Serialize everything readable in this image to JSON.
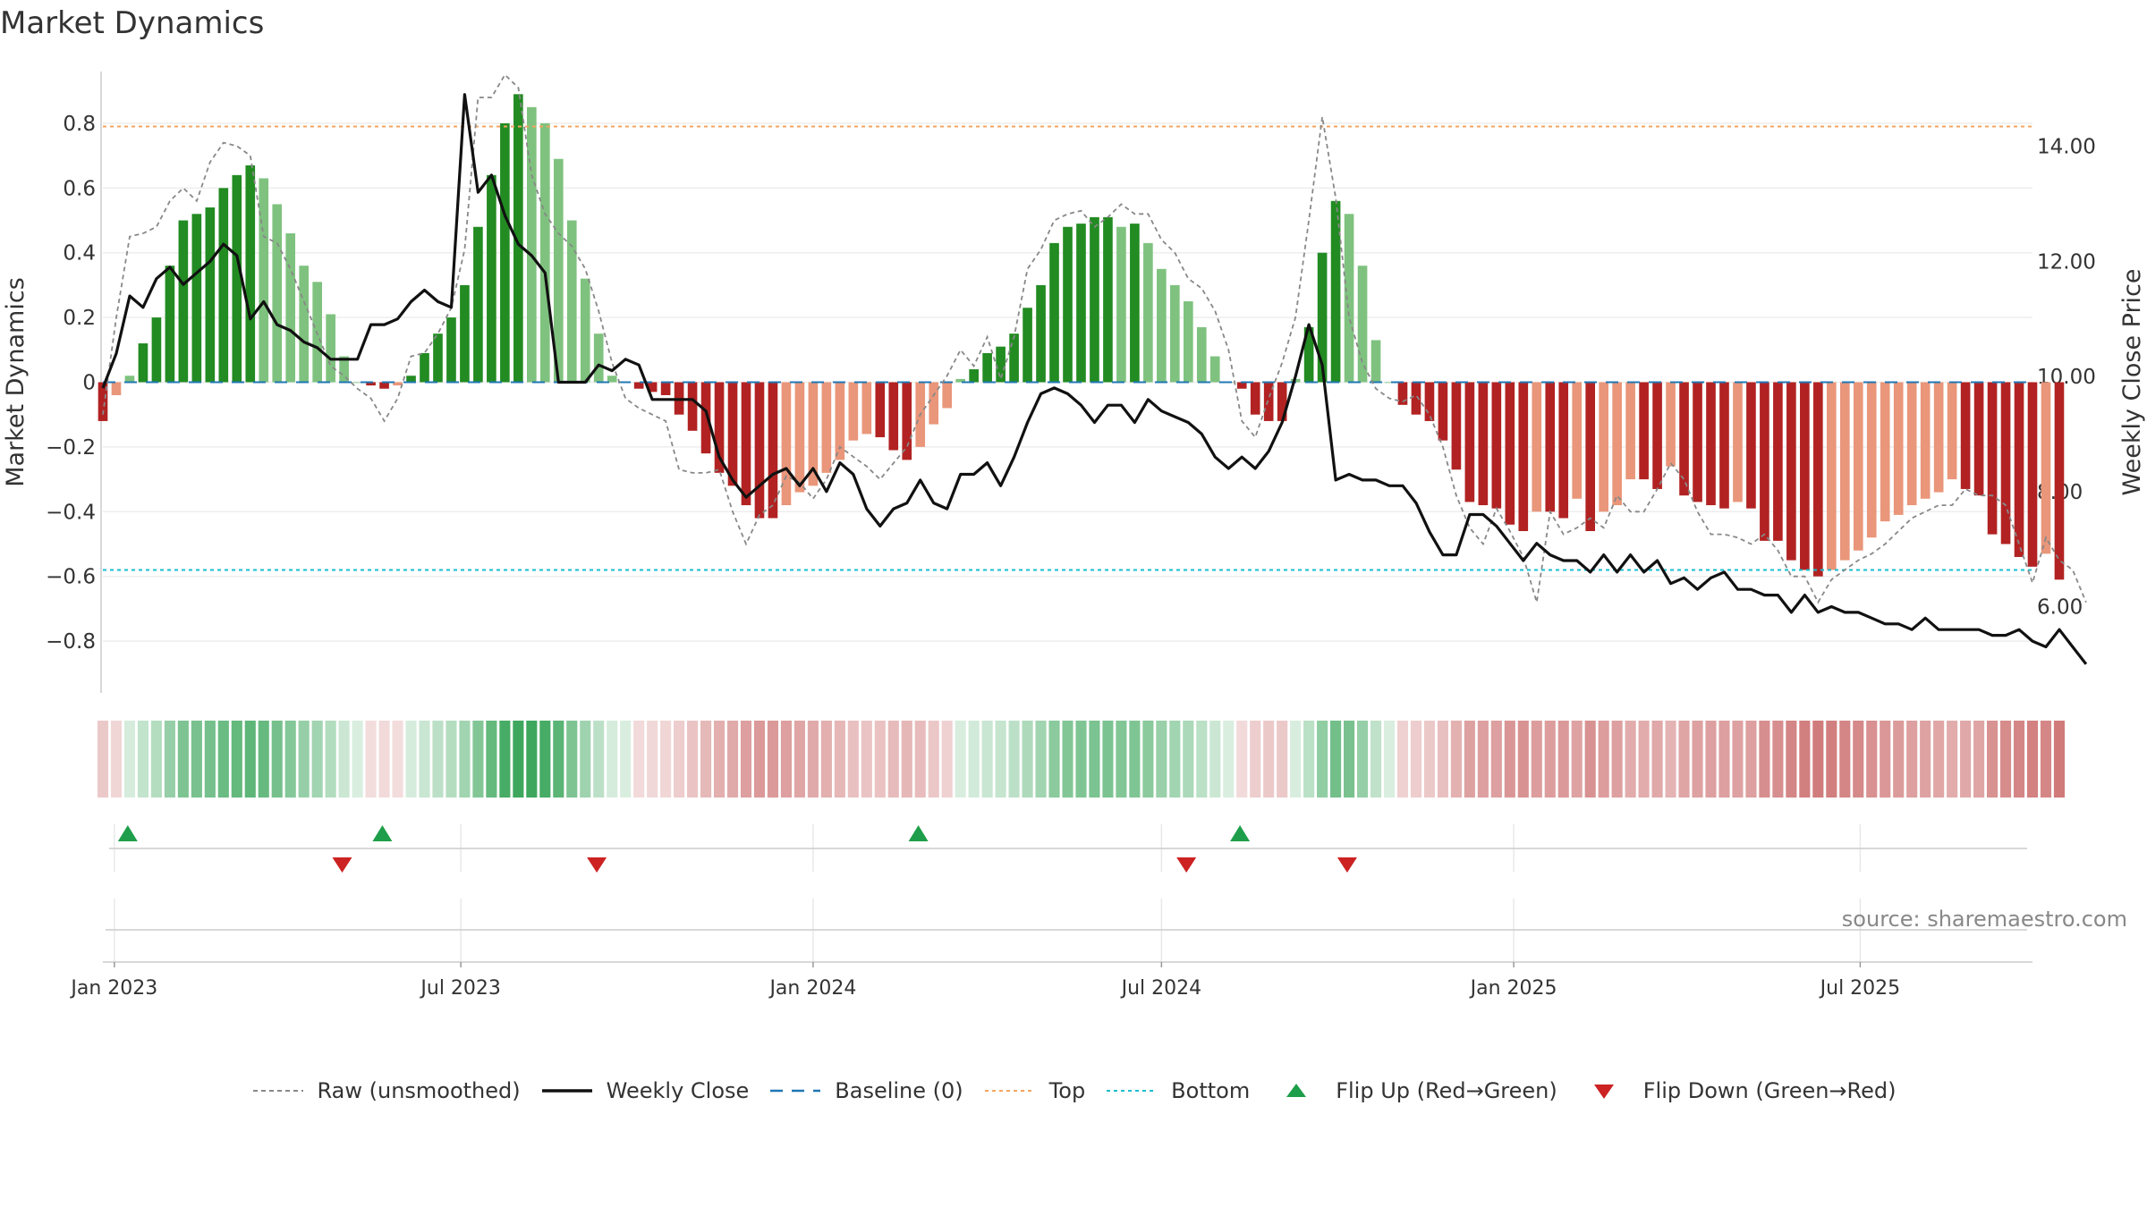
{
  "title": "Market Dynamics",
  "source": "source: sharemaestro.com",
  "colors": {
    "strong_green": "#228b22",
    "light_green": "#7fc27f",
    "strong_red": "#b22222",
    "light_red": "#e9967a",
    "close_line": "#111111",
    "raw_line": "#888888",
    "baseline": "#1f77b4",
    "top": "#f4a460",
    "bottom": "#17becf",
    "flip_up": "#1e9e4a",
    "flip_down": "#cc2222"
  },
  "legend": [
    {
      "label": "Raw (unsmoothed)",
      "icon": "dotted-line-icon"
    },
    {
      "label": "Weekly Close",
      "icon": "solid-line-icon"
    },
    {
      "label": "Baseline (0)",
      "icon": "dashed-line-icon"
    },
    {
      "label": "Top",
      "icon": "dotted-line-icon"
    },
    {
      "label": "Bottom",
      "icon": "dotted-line-icon"
    },
    {
      "label": "Flip Up (Red→Green)",
      "icon": "triangle-up-icon"
    },
    {
      "label": "Flip Down (Green→Red)",
      "icon": "triangle-down-icon"
    }
  ],
  "chart_data": {
    "type": "bar",
    "ylabel": "Market Dynamics",
    "y2label": "Weekly Close Price",
    "ylim": [
      -0.96,
      0.96
    ],
    "y2lim": [
      4.5,
      15.3
    ],
    "yticks": [
      {
        "value": 0.8,
        "label": "0.8"
      },
      {
        "value": 0.6,
        "label": "0.6"
      },
      {
        "value": 0.4,
        "label": "0.4"
      },
      {
        "value": 0.2,
        "label": "0.2"
      },
      {
        "value": 0,
        "label": "0"
      },
      {
        "value": -0.2,
        "label": "−0.2"
      },
      {
        "value": -0.4,
        "label": "−0.4"
      },
      {
        "value": -0.6,
        "label": "−0.6"
      },
      {
        "value": -0.8,
        "label": "−0.8"
      }
    ],
    "y2ticks": [
      {
        "value": 14,
        "label": "14.00"
      },
      {
        "value": 12,
        "label": "12.00"
      },
      {
        "value": 10,
        "label": "10.00"
      },
      {
        "value": 8,
        "label": "8.00"
      },
      {
        "value": 6,
        "label": "6.00"
      }
    ],
    "x_start": "2022-12-26",
    "x_end": "2025-09-29",
    "xticks": [
      {
        "date": "2023-01-01",
        "label": "Jan 2023"
      },
      {
        "date": "2023-07-01",
        "label": "Jul 2023"
      },
      {
        "date": "2024-01-01",
        "label": "Jan 2024"
      },
      {
        "date": "2024-07-01",
        "label": "Jul 2024"
      },
      {
        "date": "2025-01-01",
        "label": "Jan 2025"
      },
      {
        "date": "2025-07-01",
        "label": "Jul 2025"
      }
    ],
    "top_level": 0.79,
    "bottom_level": -0.58,
    "baseline": 0,
    "flip_up_dates": [
      "2023-01-08",
      "2023-05-21",
      "2024-02-25",
      "2024-08-11"
    ],
    "flip_down_dates": [
      "2023-04-30",
      "2023-09-10",
      "2024-07-14",
      "2024-10-06"
    ],
    "series": [
      {
        "name": "Market Dynamics",
        "values": [
          -0.12,
          -0.04,
          0.02,
          0.12,
          0.2,
          0.36,
          0.5,
          0.52,
          0.54,
          0.6,
          0.64,
          0.67,
          0.63,
          0.55,
          0.46,
          0.36,
          0.31,
          0.21,
          0.08,
          0,
          -0.01,
          -0.02,
          -0.01,
          0.02,
          0.09,
          0.15,
          0.2,
          0.3,
          0.48,
          0.64,
          0.8,
          0.89,
          0.85,
          0.8,
          0.69,
          0.5,
          0.32,
          0.15,
          0.02,
          0,
          -0.02,
          -0.03,
          -0.04,
          -0.1,
          -0.15,
          -0.22,
          -0.28,
          -0.32,
          -0.38,
          -0.42,
          -0.42,
          -0.38,
          -0.34,
          -0.32,
          -0.28,
          -0.24,
          -0.18,
          -0.16,
          -0.17,
          -0.21,
          -0.24,
          -0.2,
          -0.13,
          -0.08,
          0.01,
          0.04,
          0.09,
          0.11,
          0.15,
          0.23,
          0.3,
          0.43,
          0.48,
          0.49,
          0.51,
          0.51,
          0.48,
          0.49,
          0.43,
          0.35,
          0.3,
          0.25,
          0.17,
          0.08,
          0,
          -0.02,
          -0.1,
          -0.12,
          -0.12,
          0.01,
          0.17,
          0.4,
          0.56,
          0.52,
          0.36,
          0.13,
          0,
          -0.07,
          -0.1,
          -0.12,
          -0.18,
          -0.27,
          -0.37,
          -0.38,
          -0.39,
          -0.44,
          -0.46,
          -0.4,
          -0.4,
          -0.42,
          -0.36,
          -0.46,
          -0.4,
          -0.38,
          -0.3,
          -0.3,
          -0.33,
          -0.26,
          -0.35,
          -0.37,
          -0.38,
          -0.39,
          -0.37,
          -0.39,
          -0.49,
          -0.49,
          -0.55,
          -0.58,
          -0.6,
          -0.58,
          -0.55,
          -0.52,
          -0.48,
          -0.43,
          -0.41,
          -0.38,
          -0.36,
          -0.34,
          -0.3,
          -0.33,
          -0.35,
          -0.47,
          -0.5,
          -0.54,
          -0.57,
          -0.53,
          -0.61
        ]
      },
      {
        "name": "Weekly Close",
        "values": [
          9.8,
          10.4,
          11.4,
          11.2,
          11.7,
          11.9,
          11.6,
          11.8,
          12.0,
          12.3,
          12.1,
          11.0,
          11.3,
          10.9,
          10.8,
          10.6,
          10.5,
          10.3,
          10.3,
          10.3,
          10.9,
          10.9,
          11.0,
          11.3,
          11.5,
          11.3,
          11.2,
          14.9,
          13.2,
          13.5,
          12.8,
          12.3,
          12.1,
          11.8,
          9.9,
          9.9,
          9.9,
          10.2,
          10.1,
          10.3,
          10.2,
          9.6,
          9.6,
          9.6,
          9.6,
          9.4,
          8.6,
          8.2,
          7.9,
          8.1,
          8.3,
          8.4,
          8.1,
          8.4,
          8.0,
          8.5,
          8.3,
          7.7,
          7.4,
          7.7,
          7.8,
          8.2,
          7.8,
          7.7,
          8.3,
          8.3,
          8.5,
          8.1,
          8.6,
          9.2,
          9.7,
          9.8,
          9.7,
          9.5,
          9.2,
          9.5,
          9.5,
          9.2,
          9.6,
          9.4,
          9.3,
          9.2,
          9.0,
          8.6,
          8.4,
          8.6,
          8.4,
          8.7,
          9.2,
          10.0,
          10.9,
          10.2,
          8.2,
          8.3,
          8.2,
          8.2,
          8.1,
          8.1,
          7.8,
          7.3,
          6.9,
          6.9,
          7.6,
          7.6,
          7.4,
          7.1,
          6.8,
          7.1,
          6.9,
          6.8,
          6.8,
          6.6,
          6.9,
          6.6,
          6.9,
          6.6,
          6.8,
          6.4,
          6.5,
          6.3,
          6.5,
          6.6,
          6.3,
          6.3,
          6.2,
          6.2,
          5.9,
          6.2,
          5.9,
          6.0,
          5.9,
          5.9,
          5.8,
          5.7,
          5.7,
          5.6,
          5.8,
          5.6,
          5.6,
          5.6,
          5.6,
          5.5,
          5.5,
          5.6,
          5.4,
          5.3,
          5.6,
          5.3,
          5.0
        ]
      },
      {
        "name": "Raw (unsmoothed)",
        "values": [
          -0.1,
          0.2,
          0.45,
          0.46,
          0.48,
          0.56,
          0.6,
          0.56,
          0.68,
          0.74,
          0.73,
          0.7,
          0.45,
          0.43,
          0.35,
          0.25,
          0.15,
          0.05,
          0.02,
          -0.02,
          -0.05,
          -0.12,
          -0.05,
          0.08,
          0.09,
          0.15,
          0.23,
          0.41,
          0.88,
          0.88,
          0.95,
          0.91,
          0.64,
          0.52,
          0.46,
          0.42,
          0.35,
          0.22,
          0.06,
          -0.05,
          -0.08,
          -0.1,
          -0.12,
          -0.27,
          -0.28,
          -0.28,
          -0.27,
          -0.4,
          -0.5,
          -0.41,
          -0.38,
          -0.29,
          -0.31,
          -0.36,
          -0.3,
          -0.2,
          -0.23,
          -0.26,
          -0.3,
          -0.25,
          -0.2,
          -0.1,
          -0.04,
          0.02,
          0.1,
          0.05,
          0.14,
          0.01,
          0.14,
          0.35,
          0.41,
          0.5,
          0.52,
          0.53,
          0.48,
          0.51,
          0.55,
          0.52,
          0.52,
          0.44,
          0.4,
          0.32,
          0.29,
          0.22,
          0.1,
          -0.12,
          -0.17,
          -0.05,
          0.06,
          0.2,
          0.5,
          0.82,
          0.57,
          0.2,
          0.06,
          -0.02,
          -0.05,
          -0.06,
          -0.04,
          -0.1,
          -0.2,
          -0.35,
          -0.45,
          -0.5,
          -0.39,
          -0.46,
          -0.54,
          -0.68,
          -0.4,
          -0.47,
          -0.45,
          -0.42,
          -0.45,
          -0.35,
          -0.4,
          -0.4,
          -0.33,
          -0.25,
          -0.3,
          -0.4,
          -0.47,
          -0.47,
          -0.48,
          -0.5,
          -0.47,
          -0.52,
          -0.6,
          -0.6,
          -0.68,
          -0.61,
          -0.58,
          -0.55,
          -0.53,
          -0.5,
          -0.46,
          -0.42,
          -0.4,
          -0.38,
          -0.38,
          -0.33,
          -0.35,
          -0.35,
          -0.38,
          -0.5,
          -0.62,
          -0.48,
          -0.55,
          -0.58,
          -0.68
        ]
      }
    ]
  }
}
